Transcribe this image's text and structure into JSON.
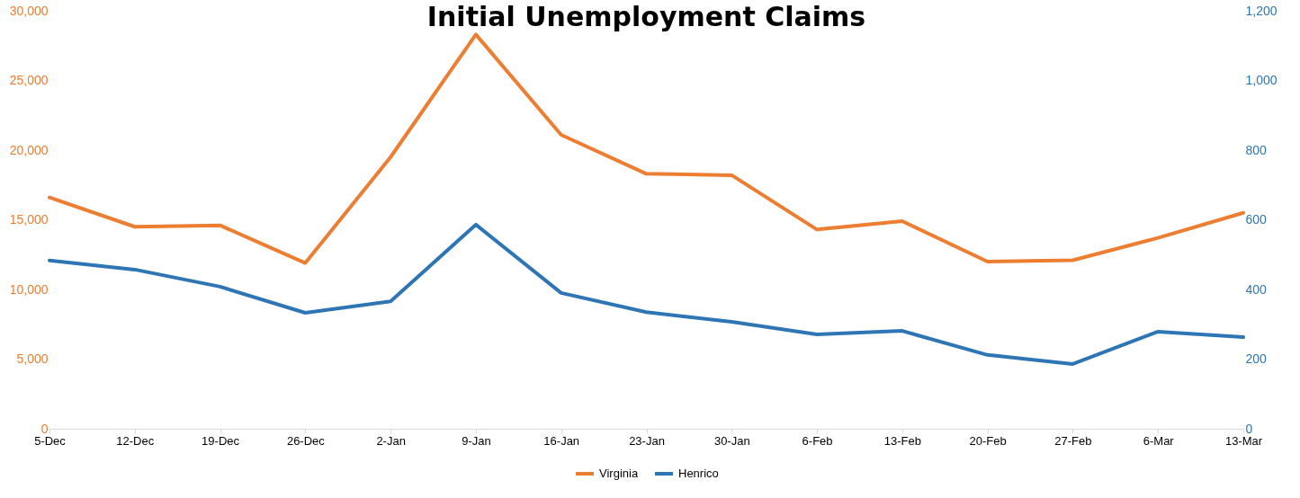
{
  "chart_data": {
    "type": "line",
    "title": "Initial Unemployment Claims",
    "categories": [
      "5-Dec",
      "12-Dec",
      "19-Dec",
      "26-Dec",
      "2-Jan",
      "9-Jan",
      "16-Jan",
      "23-Jan",
      "30-Jan",
      "6-Feb",
      "13-Feb",
      "20-Feb",
      "27-Feb",
      "6-Mar",
      "13-Mar"
    ],
    "series": [
      {
        "name": "Virginia",
        "color": "#ed7d31",
        "values": [
          16600,
          14500,
          14600,
          11900,
          19500,
          28300,
          21100,
          18300,
          18200,
          14300,
          14900,
          12000,
          12100,
          13700,
          15500
        ]
      },
      {
        "name": "Henrico",
        "color": "#2e75b6",
        "axis": "y2",
        "values": [
          483,
          457,
          408,
          333,
          366,
          586,
          390,
          335,
          307,
          271,
          281,
          212,
          186,
          279,
          263
        ]
      }
    ],
    "ylim": [
      0,
      30000
    ],
    "yticks": [
      0,
      {
        "value": 5000,
        "label": "5,000"
      },
      {
        "value": 10000,
        "label": "10,000"
      },
      {
        "value": 15000,
        "label": "15,000"
      },
      {
        "value": 20000,
        "label": "20,000"
      },
      {
        "value": 25000,
        "label": "25,000"
      },
      {
        "value": 30000,
        "label": "30,000"
      }
    ],
    "y2lim": [
      0,
      1200
    ],
    "y2ticks": [
      0,
      200,
      400,
      600,
      800,
      {
        "value": 1000,
        "label": "1,000"
      },
      {
        "value": 1200,
        "label": "1,200"
      }
    ],
    "grid": false,
    "legend": "bottom",
    "marker": "none",
    "line_style": "solid"
  }
}
